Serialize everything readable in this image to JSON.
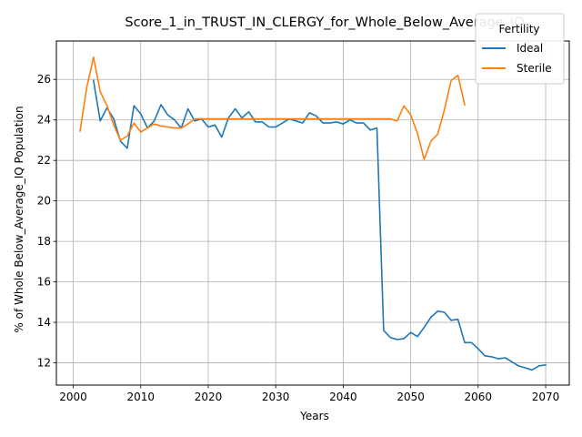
{
  "chart_data": {
    "type": "line",
    "title": "Score_1_in_TRUST_IN_CLERGY_for_Whole_Below_Average_IQ",
    "xlabel": "Years",
    "ylabel": "% of Whole Below_Average_IQ Population",
    "xlim": [
      1997.5,
      2073.5
    ],
    "ylim": [
      10.9,
      27.9
    ],
    "xticks": [
      2000,
      2010,
      2020,
      2030,
      2040,
      2050,
      2060,
      2070
    ],
    "yticks": [
      12,
      14,
      16,
      18,
      20,
      22,
      24,
      26
    ],
    "grid": true,
    "legend": {
      "title": "Fertility",
      "placement": "top-right"
    },
    "series": [
      {
        "name": "Ideal",
        "color": "#1f77b4",
        "x": [
          2003,
          2004,
          2005,
          2006,
          2007,
          2008,
          2009,
          2010,
          2011,
          2012,
          2013,
          2014,
          2015,
          2016,
          2017,
          2018,
          2019,
          2020,
          2021,
          2022,
          2023,
          2024,
          2025,
          2026,
          2027,
          2028,
          2029,
          2030,
          2031,
          2032,
          2033,
          2034,
          2035,
          2036,
          2037,
          2038,
          2039,
          2040,
          2041,
          2042,
          2043,
          2044,
          2045,
          2046,
          2047,
          2048,
          2049,
          2050,
          2051,
          2052,
          2053,
          2054,
          2055,
          2056,
          2057,
          2058,
          2059,
          2060,
          2061,
          2062,
          2063,
          2064,
          2065,
          2066,
          2067,
          2068,
          2069,
          2070
        ],
        "values": [
          25.95,
          23.95,
          24.6,
          24.05,
          22.95,
          22.6,
          24.7,
          24.3,
          23.6,
          23.95,
          24.75,
          24.25,
          24.0,
          23.6,
          24.55,
          23.95,
          24.05,
          23.65,
          23.75,
          23.15,
          24.1,
          24.55,
          24.1,
          24.4,
          23.9,
          23.9,
          23.65,
          23.65,
          23.85,
          24.05,
          23.95,
          23.85,
          24.35,
          24.2,
          23.85,
          23.85,
          23.9,
          23.8,
          24.0,
          23.85,
          23.85,
          23.5,
          23.6,
          13.6,
          13.25,
          13.15,
          13.2,
          13.5,
          13.3,
          13.75,
          14.25,
          14.55,
          14.5,
          14.1,
          14.15,
          13.0,
          13.0,
          12.7,
          12.35,
          12.3,
          12.2,
          12.25,
          12.05,
          11.85,
          11.75,
          11.65,
          11.85,
          11.9
        ]
      },
      {
        "name": "Sterile",
        "color": "#ff7f0e",
        "x": [
          2001,
          2002,
          2003,
          2004,
          2005,
          2006,
          2007,
          2008,
          2009,
          2010,
          2011,
          2012,
          2013,
          2014,
          2015,
          2016,
          2017,
          2018,
          2019,
          2020,
          2021,
          2022,
          2023,
          2024,
          2025,
          2026,
          2027,
          2028,
          2029,
          2030,
          2031,
          2032,
          2033,
          2034,
          2035,
          2036,
          2037,
          2038,
          2039,
          2040,
          2041,
          2042,
          2043,
          2044,
          2045,
          2046,
          2047,
          2048,
          2049,
          2050,
          2051,
          2052,
          2053,
          2054,
          2055,
          2056,
          2057,
          2058
        ],
        "values": [
          23.45,
          25.6,
          27.1,
          25.4,
          24.7,
          23.75,
          23.0,
          23.2,
          23.85,
          23.4,
          23.6,
          23.8,
          23.7,
          23.65,
          23.6,
          23.6,
          23.8,
          24.05,
          24.05,
          24.05,
          24.05,
          24.05,
          24.05,
          24.05,
          24.05,
          24.05,
          24.05,
          24.05,
          24.05,
          24.05,
          24.05,
          24.05,
          24.05,
          24.05,
          24.05,
          24.05,
          24.05,
          24.05,
          24.05,
          24.05,
          24.05,
          24.05,
          24.05,
          24.05,
          24.05,
          24.05,
          24.05,
          23.95,
          24.7,
          24.25,
          23.35,
          22.05,
          22.95,
          23.3,
          24.5,
          25.95,
          26.2,
          24.75
        ]
      }
    ]
  }
}
